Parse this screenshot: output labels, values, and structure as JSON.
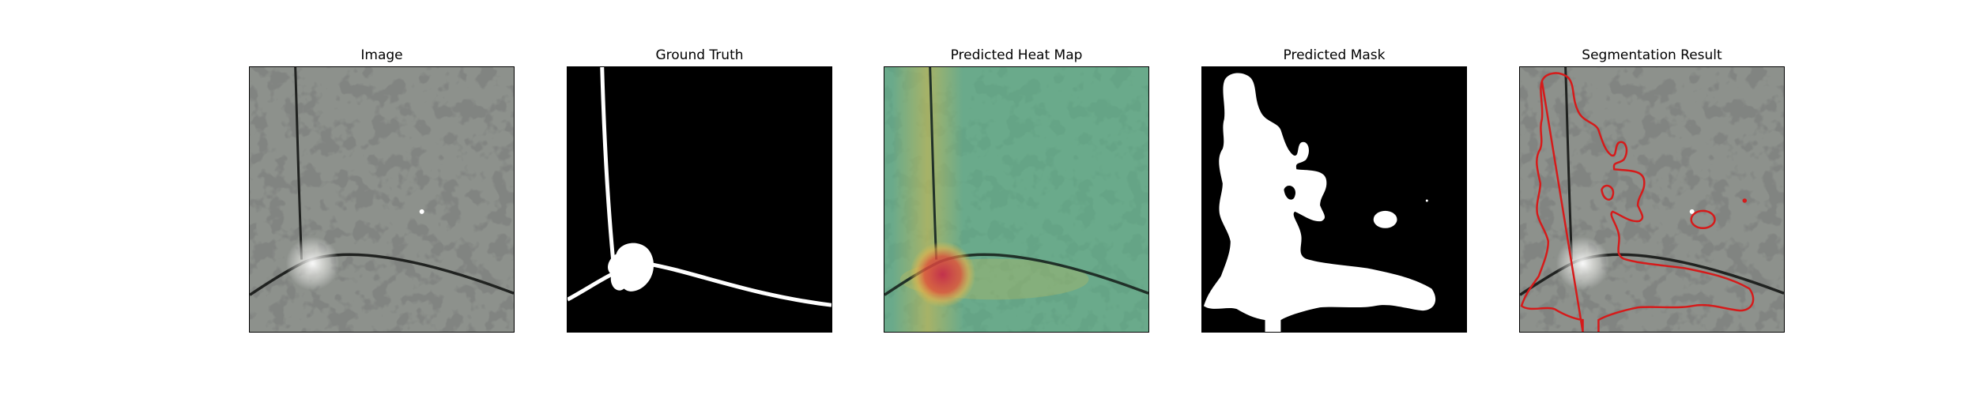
{
  "panels": [
    {
      "title": "Image"
    },
    {
      "title": "Ground Truth"
    },
    {
      "title": "Predicted Heat Map"
    },
    {
      "title": "Predicted Mask"
    },
    {
      "title": "Segmentation Result"
    }
  ],
  "colors": {
    "stone_base": "#8d918c",
    "stone_spots": "#3a3d3b",
    "mask_fg": "#ffffff",
    "mask_bg": "#000000",
    "heatmap_cool": "#5fbf8a",
    "heatmap_hot": "#d83a3a",
    "contour": "#d61a1a"
  }
}
